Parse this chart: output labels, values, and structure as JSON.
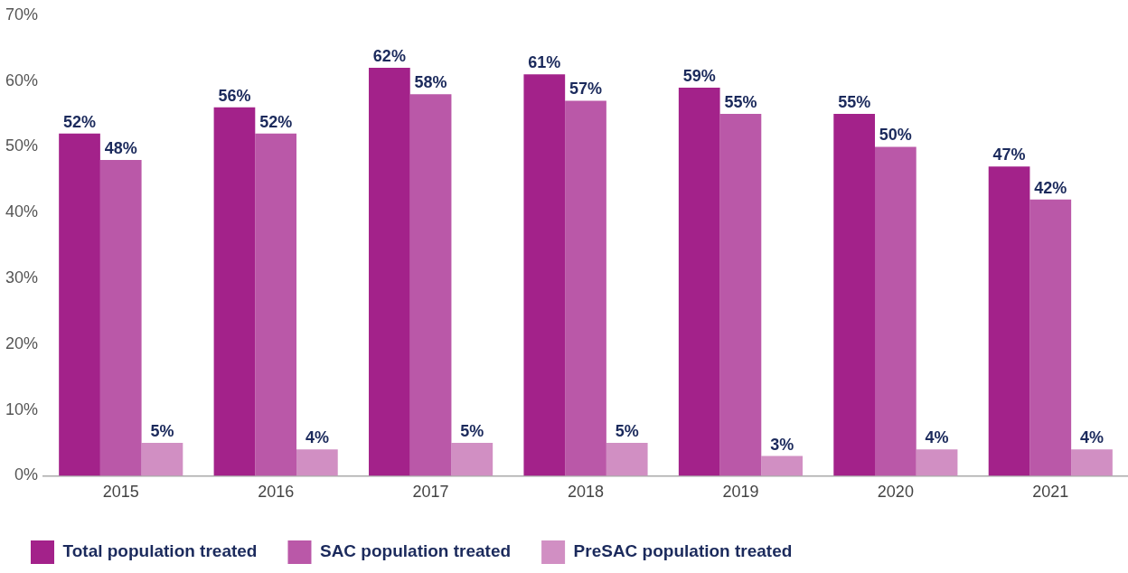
{
  "chart_data": {
    "type": "bar",
    "categories": [
      "2015",
      "2016",
      "2017",
      "2018",
      "2019",
      "2020",
      "2021"
    ],
    "series": [
      {
        "name": "Total population treated",
        "color": "#a3228a",
        "values": [
          52,
          56,
          62,
          61,
          59,
          55,
          47
        ],
        "value_labels": [
          "52%",
          "56%",
          "62%",
          "61%",
          "59%",
          "55%",
          "47%"
        ]
      },
      {
        "name": "SAC population treated",
        "color": "#ba58a8",
        "values": [
          48,
          52,
          58,
          57,
          55,
          50,
          42
        ],
        "value_labels": [
          "48%",
          "52%",
          "58%",
          "57%",
          "55%",
          "50%",
          "42%"
        ]
      },
      {
        "name": "PreSAC population treated",
        "color": "#d18fc3",
        "values": [
          5,
          4,
          5,
          5,
          3,
          4,
          4
        ],
        "value_labels": [
          "5%",
          "4%",
          "5%",
          "5%",
          "3%",
          "4%",
          "4%"
        ]
      }
    ],
    "ylim": [
      0,
      70
    ],
    "yticks": [
      {
        "value": 0,
        "label": "0%"
      },
      {
        "value": 10,
        "label": "10%"
      },
      {
        "value": 20,
        "label": "20%"
      },
      {
        "value": 30,
        "label": "30%"
      },
      {
        "value": 40,
        "label": "40%"
      },
      {
        "value": 50,
        "label": "50%"
      },
      {
        "value": 60,
        "label": "60%"
      },
      {
        "value": 70,
        "label": "70%"
      }
    ],
    "legend": "bottom left"
  }
}
